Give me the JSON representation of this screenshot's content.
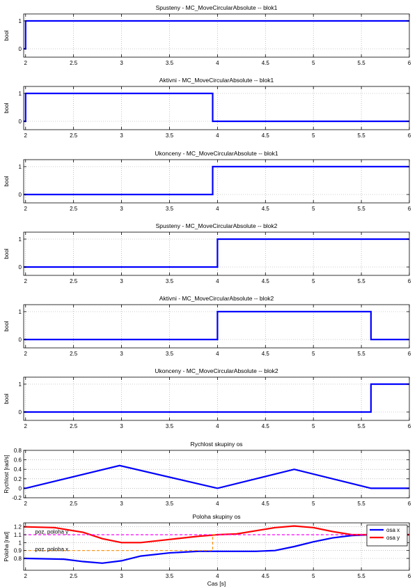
{
  "chart_data": [
    {
      "type": "line",
      "title": "Spusteny - MC_MoveCircularAbsolute -- blok1",
      "xlabel": "",
      "ylabel": "bool",
      "xlim": [
        1.98,
        6.0
      ],
      "ylim": [
        -0.3,
        1.25
      ],
      "xticks": [
        2,
        2.5,
        3,
        3.5,
        4,
        4.5,
        5,
        5.5,
        6
      ],
      "xtick_labels": [
        "2",
        "2.5",
        "3",
        "3.5",
        "4",
        "4.5",
        "5",
        "5.5",
        "6"
      ],
      "yticks": [
        0,
        1
      ],
      "ytick_labels": [
        "0",
        "1"
      ],
      "grid": true,
      "series": [
        {
          "color": "#0000ff",
          "dash": "",
          "x": [
            1.98,
            2.0,
            2.0,
            6.0
          ],
          "y": [
            0,
            0,
            1,
            1
          ]
        }
      ]
    },
    {
      "type": "line",
      "title": "Aktivni - MC_MoveCircularAbsolute -- blok1",
      "xlabel": "",
      "ylabel": "bool",
      "xlim": [
        1.98,
        6.0
      ],
      "ylim": [
        -0.3,
        1.25
      ],
      "xticks": [
        2,
        2.5,
        3,
        3.5,
        4,
        4.5,
        5,
        5.5,
        6
      ],
      "xtick_labels": [
        "2",
        "2.5",
        "3",
        "3.5",
        "4",
        "4.5",
        "5",
        "5.5",
        "6"
      ],
      "yticks": [
        0,
        1
      ],
      "ytick_labels": [
        "0",
        "1"
      ],
      "grid": true,
      "series": [
        {
          "color": "#0000ff",
          "dash": "",
          "x": [
            1.98,
            2.0,
            2.0,
            3.95,
            3.95,
            6.0
          ],
          "y": [
            0,
            0,
            1,
            1,
            0,
            0
          ]
        }
      ]
    },
    {
      "type": "line",
      "title": "Ukonceny - MC_MoveCircularAbsolute -- blok1",
      "xlabel": "",
      "ylabel": "bool",
      "xlim": [
        1.98,
        6.0
      ],
      "ylim": [
        -0.3,
        1.25
      ],
      "xticks": [
        2,
        2.5,
        3,
        3.5,
        4,
        4.5,
        5,
        5.5,
        6
      ],
      "xtick_labels": [
        "2",
        "2.5",
        "3",
        "3.5",
        "4",
        "4.5",
        "5",
        "5.5",
        "6"
      ],
      "yticks": [
        0,
        1
      ],
      "ytick_labels": [
        "0",
        "1"
      ],
      "grid": true,
      "series": [
        {
          "color": "#0000ff",
          "dash": "",
          "x": [
            1.98,
            3.95,
            3.95,
            6.0
          ],
          "y": [
            0,
            0,
            1,
            1
          ]
        }
      ]
    },
    {
      "type": "line",
      "title": "Spusteny - MC_MoveCircularAbsolute -- blok2",
      "xlabel": "",
      "ylabel": "bool",
      "xlim": [
        1.98,
        6.0
      ],
      "ylim": [
        -0.3,
        1.25
      ],
      "xticks": [
        2,
        2.5,
        3,
        3.5,
        4,
        4.5,
        5,
        5.5,
        6
      ],
      "xtick_labels": [
        "2",
        "2.5",
        "3",
        "3.5",
        "4",
        "4.5",
        "5",
        "5.5",
        "6"
      ],
      "yticks": [
        0,
        1
      ],
      "ytick_labels": [
        "0",
        "1"
      ],
      "grid": true,
      "series": [
        {
          "color": "#0000ff",
          "dash": "",
          "x": [
            1.98,
            4.0,
            4.0,
            6.0
          ],
          "y": [
            0,
            0,
            1,
            1
          ]
        }
      ]
    },
    {
      "type": "line",
      "title": "Aktivni - MC_MoveCircularAbsolute -- blok2",
      "xlabel": "",
      "ylabel": "bool",
      "xlim": [
        1.98,
        6.0
      ],
      "ylim": [
        -0.3,
        1.25
      ],
      "xticks": [
        2,
        2.5,
        3,
        3.5,
        4,
        4.5,
        5,
        5.5,
        6
      ],
      "xtick_labels": [
        "2",
        "2.5",
        "3",
        "3.5",
        "4",
        "4.5",
        "5",
        "5.5",
        "6"
      ],
      "yticks": [
        0,
        1
      ],
      "ytick_labels": [
        "0",
        "1"
      ],
      "grid": true,
      "series": [
        {
          "color": "#0000ff",
          "dash": "",
          "x": [
            1.98,
            4.0,
            4.0,
            5.6,
            5.6,
            6.0
          ],
          "y": [
            0,
            0,
            1,
            1,
            0,
            0
          ]
        }
      ]
    },
    {
      "type": "line",
      "title": "Ukonceny - MC_MoveCircularAbsolute -- blok2",
      "xlabel": "",
      "ylabel": "bool",
      "xlim": [
        1.98,
        6.0
      ],
      "ylim": [
        -0.3,
        1.25
      ],
      "xticks": [
        2,
        2.5,
        3,
        3.5,
        4,
        4.5,
        5,
        5.5,
        6
      ],
      "xtick_labels": [
        "2",
        "2.5",
        "3",
        "3.5",
        "4",
        "4.5",
        "5",
        "5.5",
        "6"
      ],
      "yticks": [
        0,
        1
      ],
      "ytick_labels": [
        "0",
        "1"
      ],
      "grid": true,
      "series": [
        {
          "color": "#0000ff",
          "dash": "",
          "x": [
            1.98,
            5.6,
            5.6,
            6.0
          ],
          "y": [
            0,
            0,
            1,
            1
          ]
        }
      ]
    },
    {
      "type": "line",
      "title": "Rychlost skupiny os",
      "xlabel": "",
      "ylabel": "Rychlost [rad/s]",
      "xlim": [
        1.98,
        6.0
      ],
      "ylim": [
        -0.2,
        0.8
      ],
      "xticks": [
        2,
        2.5,
        3,
        3.5,
        4,
        4.5,
        5,
        5.5,
        6
      ],
      "xtick_labels": [
        "2",
        "2.5",
        "3",
        "3.5",
        "4",
        "4.5",
        "5",
        "5.5",
        "6"
      ],
      "yticks": [
        -0.2,
        0,
        0.2,
        0.4,
        0.6,
        0.8
      ],
      "ytick_labels": [
        "-0.2",
        "0",
        "0.2",
        "0.4",
        "0.6",
        "0.8"
      ],
      "grid": true,
      "series": [
        {
          "color": "#0000ff",
          "dash": "",
          "x": [
            1.98,
            2.0,
            2.98,
            4.0,
            4.8,
            5.6,
            6.0
          ],
          "y": [
            0,
            0,
            0.48,
            0,
            0.4,
            0,
            0
          ]
        }
      ]
    },
    {
      "type": "line",
      "title": "Poloha skupiny os",
      "xlabel": "Cas [s]",
      "ylabel": "Poloha [rad]",
      "xlim": [
        1.98,
        6.0
      ],
      "ylim": [
        0.65,
        1.25
      ],
      "xticks": [
        2,
        2.5,
        3,
        3.5,
        4,
        4.5,
        5,
        5.5,
        6
      ],
      "xtick_labels": [
        "2",
        "2.5",
        "3",
        "3.5",
        "4",
        "4.5",
        "5",
        "5.5",
        "6"
      ],
      "yticks": [
        0.8,
        0.9,
        1.0,
        1.1,
        1.2
      ],
      "ytick_labels": [
        "0.8",
        "0.9",
        "1",
        "1.1",
        "1.2"
      ],
      "grid": true,
      "legend": {
        "placement": "top-right",
        "entries": [
          "osa x",
          "osa y"
        ]
      },
      "annotations": [
        {
          "text": "poz. poloha y",
          "x": 2.1,
          "y": 1.14
        },
        {
          "text": "poz. poloha x",
          "x": 2.1,
          "y": 0.92
        }
      ],
      "series": [
        {
          "name": "osa x",
          "color": "#0000ff",
          "dash": "",
          "x": [
            1.98,
            2.0,
            2.4,
            2.6,
            2.8,
            3.0,
            3.2,
            3.5,
            3.8,
            4.0,
            4.2,
            4.4,
            4.6,
            4.8,
            5.0,
            5.2,
            5.4,
            5.6,
            5.8,
            6.0
          ],
          "y": [
            0.8,
            0.8,
            0.79,
            0.76,
            0.74,
            0.77,
            0.83,
            0.87,
            0.89,
            0.89,
            0.89,
            0.89,
            0.9,
            0.95,
            1.01,
            1.06,
            1.09,
            1.1,
            1.1,
            1.1
          ]
        },
        {
          "name": "osa y",
          "color": "#ff0000",
          "dash": "",
          "x": [
            1.98,
            2.0,
            2.3,
            2.6,
            2.8,
            3.0,
            3.2,
            3.5,
            3.8,
            4.0,
            4.2,
            4.4,
            4.6,
            4.8,
            5.0,
            5.2,
            5.4,
            5.6,
            5.8,
            6.0
          ],
          "y": [
            1.2,
            1.2,
            1.19,
            1.13,
            1.05,
            1.0,
            1.0,
            1.04,
            1.08,
            1.1,
            1.11,
            1.15,
            1.19,
            1.21,
            1.19,
            1.14,
            1.1,
            1.1,
            1.1,
            1.1
          ]
        },
        {
          "color": "#ff00ff",
          "dash": "4,3",
          "x": [
            1.98,
            6.0
          ],
          "y": [
            1.1,
            1.1
          ]
        },
        {
          "color": "#ff8c00",
          "dash": "4,3",
          "x": [
            1.98,
            3.95,
            3.95,
            4.0
          ],
          "y": [
            0.9,
            0.9,
            1.1,
            1.1
          ]
        }
      ]
    }
  ]
}
